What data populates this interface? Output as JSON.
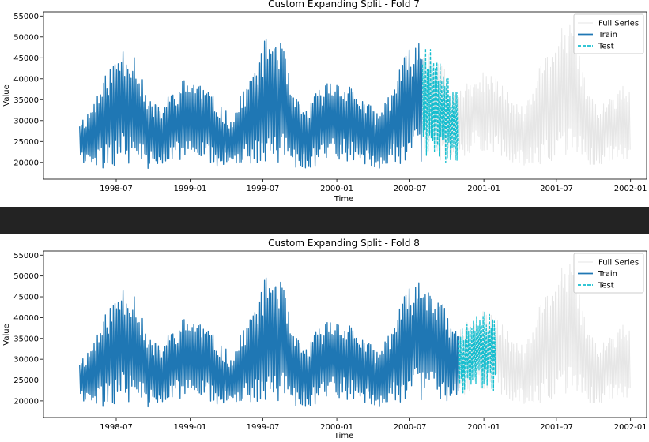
{
  "chart_data": [
    {
      "type": "line",
      "title": "Custom Expanding Split - Fold 7",
      "xlabel": "Time",
      "ylabel": "Value",
      "x_ticks": [
        "1998-07",
        "1999-01",
        "1999-07",
        "2000-01",
        "2000-07",
        "2001-01",
        "2001-07",
        "2002-01"
      ],
      "y_ticks": [
        "20000",
        "25000",
        "30000",
        "35000",
        "40000",
        "45000",
        "50000",
        "55000"
      ],
      "xlim": [
        "1998-01-01",
        "2002-02-10"
      ],
      "ylim": [
        16000,
        56000
      ],
      "legend": {
        "position": "top-right",
        "entries": [
          "Full Series",
          "Train",
          "Test"
        ]
      },
      "colors": {
        "full": "#e6e6e6",
        "train": "#1f77b4",
        "test": "#17becf"
      },
      "series": [
        {
          "name": "Full Series",
          "start": "1998-04-01",
          "end": "2001-12-31",
          "style": "solid"
        },
        {
          "name": "Train",
          "start": "1998-04-01",
          "end": "2000-08-01",
          "style": "solid"
        },
        {
          "name": "Test",
          "start": "2000-08-01",
          "end": "2000-10-31",
          "style": "dashed"
        }
      ],
      "envelope_monthly": {
        "months": [
          "1998-04",
          "1998-05",
          "1998-06",
          "1998-07",
          "1998-08",
          "1998-09",
          "1998-10",
          "1998-11",
          "1998-12",
          "1999-01",
          "1999-02",
          "1999-03",
          "1999-04",
          "1999-05",
          "1999-06",
          "1999-07",
          "1999-08",
          "1999-09",
          "1999-10",
          "1999-11",
          "1999-12",
          "2000-01",
          "2000-02",
          "2000-03",
          "2000-04",
          "2000-05",
          "2000-06",
          "2000-07",
          "2000-08",
          "2000-09",
          "2000-10",
          "2000-11",
          "2000-12",
          "2001-01",
          "2001-02",
          "2001-03",
          "2001-04",
          "2001-05",
          "2001-06",
          "2001-07",
          "2001-08",
          "2001-09",
          "2001-10",
          "2001-11",
          "2001-12"
        ],
        "high": [
          31000,
          37000,
          43000,
          48500,
          47000,
          36000,
          33500,
          37000,
          40000,
          40500,
          37500,
          34000,
          31000,
          38000,
          44000,
          51500,
          50000,
          36000,
          33000,
          37500,
          40000,
          40000,
          38000,
          34500,
          32000,
          38000,
          45000,
          49500,
          49500,
          45000,
          37500,
          39000,
          41500,
          41500,
          39000,
          35000,
          33000,
          42000,
          48000,
          54000,
          52000,
          38000,
          34000,
          36000,
          38500
        ],
        "low": [
          19500,
          18000,
          18500,
          19500,
          20000,
          18500,
          18000,
          19500,
          20500,
          20500,
          20000,
          19000,
          18000,
          19000,
          19500,
          20000,
          20000,
          19000,
          18000,
          19500,
          21000,
          20500,
          20000,
          19000,
          18500,
          19000,
          19500,
          20000,
          20500,
          19500,
          19500,
          21500,
          23000,
          22500,
          21500,
          20000,
          19000,
          19500,
          20000,
          20500,
          20500,
          19500,
          19000,
          20000,
          20500
        ]
      }
    },
    {
      "type": "line",
      "title": "Custom Expanding Split - Fold 8",
      "xlabel": "Time",
      "ylabel": "Value",
      "x_ticks": [
        "1998-07",
        "1999-01",
        "1999-07",
        "2000-01",
        "2000-07",
        "2001-01",
        "2001-07",
        "2002-01"
      ],
      "y_ticks": [
        "20000",
        "25000",
        "30000",
        "35000",
        "40000",
        "45000",
        "50000",
        "55000"
      ],
      "xlim": [
        "1998-01-01",
        "2002-02-10"
      ],
      "ylim": [
        16000,
        56000
      ],
      "legend": {
        "position": "top-right",
        "entries": [
          "Full Series",
          "Train",
          "Test"
        ]
      },
      "colors": {
        "full": "#e6e6e6",
        "train": "#1f77b4",
        "test": "#17becf"
      },
      "series": [
        {
          "name": "Full Series",
          "start": "1998-04-01",
          "end": "2001-12-31",
          "style": "solid"
        },
        {
          "name": "Train",
          "start": "1998-04-01",
          "end": "2000-10-31",
          "style": "solid"
        },
        {
          "name": "Test",
          "start": "2000-10-31",
          "end": "2001-01-31",
          "style": "dashed"
        }
      ],
      "envelope_monthly": {
        "months": [
          "1998-04",
          "1998-05",
          "1998-06",
          "1998-07",
          "1998-08",
          "1998-09",
          "1998-10",
          "1998-11",
          "1998-12",
          "1999-01",
          "1999-02",
          "1999-03",
          "1999-04",
          "1999-05",
          "1999-06",
          "1999-07",
          "1999-08",
          "1999-09",
          "1999-10",
          "1999-11",
          "1999-12",
          "2000-01",
          "2000-02",
          "2000-03",
          "2000-04",
          "2000-05",
          "2000-06",
          "2000-07",
          "2000-08",
          "2000-09",
          "2000-10",
          "2000-11",
          "2000-12",
          "2001-01",
          "2001-02",
          "2001-03",
          "2001-04",
          "2001-05",
          "2001-06",
          "2001-07",
          "2001-08",
          "2001-09",
          "2001-10",
          "2001-11",
          "2001-12"
        ],
        "high": [
          31000,
          37000,
          43000,
          48500,
          47000,
          36000,
          33500,
          37000,
          40000,
          40500,
          37500,
          34000,
          31000,
          38000,
          44000,
          51500,
          50000,
          36000,
          33000,
          37500,
          40000,
          40000,
          38000,
          34500,
          32000,
          38000,
          45000,
          49500,
          49500,
          45000,
          37500,
          39000,
          41500,
          41500,
          39000,
          35000,
          33000,
          42000,
          48000,
          54000,
          52000,
          38000,
          34000,
          36000,
          38500
        ],
        "low": [
          19500,
          18000,
          18500,
          19500,
          20000,
          18500,
          18000,
          19500,
          20500,
          20500,
          20000,
          19000,
          18000,
          19000,
          19500,
          20000,
          20000,
          19000,
          18000,
          19500,
          21000,
          20500,
          20000,
          19000,
          18500,
          19000,
          19500,
          20000,
          20500,
          19500,
          19500,
          21500,
          23000,
          22500,
          21500,
          20000,
          19000,
          19500,
          20000,
          20500,
          20500,
          19500,
          19000,
          20000,
          20500
        ]
      }
    }
  ]
}
